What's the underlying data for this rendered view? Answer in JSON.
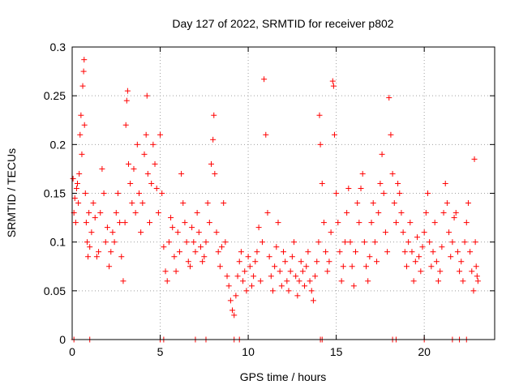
{
  "chart_data": {
    "type": "scatter",
    "title": "Day 127 of 2022, SRMTID for receiver p802",
    "xlabel": "GPS time / hours",
    "ylabel": "SRMTID / TECUs",
    "xlim": [
      0,
      24
    ],
    "ylim": [
      0,
      0.3
    ],
    "xticks": [
      0,
      5,
      10,
      15,
      20
    ],
    "yticks": [
      0,
      0.05,
      0.1,
      0.15,
      0.2,
      0.25,
      0.3
    ],
    "xtick_labels": [
      "0",
      "5",
      "10",
      "15",
      "20"
    ],
    "ytick_labels": [
      "0",
      "0.05",
      "0.1",
      "0.15",
      "0.2",
      "0.25",
      "0.3"
    ],
    "grid": true,
    "marker": "+",
    "color": "#ff0000",
    "series": [
      {
        "name": "SRMTID",
        "points": [
          [
            0.05,
            0.165
          ],
          [
            0.1,
            0.13
          ],
          [
            0.15,
            0.145
          ],
          [
            0.2,
            0.12
          ],
          [
            0.25,
            0.155
          ],
          [
            0.3,
            0.16
          ],
          [
            0.35,
            0.14
          ],
          [
            0.4,
            0.17
          ],
          [
            0.45,
            0.21
          ],
          [
            0.5,
            0.23
          ],
          [
            0.55,
            0.19
          ],
          [
            0.6,
            0.26
          ],
          [
            0.65,
            0.275
          ],
          [
            0.68,
            0.287
          ],
          [
            0.7,
            0.22
          ],
          [
            0.75,
            0.15
          ],
          [
            0.8,
            0.12
          ],
          [
            0.85,
            0.1
          ],
          [
            0.9,
            0.085
          ],
          [
            0.95,
            0.13
          ],
          [
            1.0,
            0.095
          ],
          [
            1.1,
            0.11
          ],
          [
            1.2,
            0.14
          ],
          [
            1.3,
            0.125
          ],
          [
            1.4,
            0.085
          ],
          [
            1.5,
            0.09
          ],
          [
            1.6,
            0.13
          ],
          [
            1.7,
            0.175
          ],
          [
            1.8,
            0.15
          ],
          [
            1.9,
            0.1
          ],
          [
            2.0,
            0.115
          ],
          [
            2.1,
            0.075
          ],
          [
            2.2,
            0.09
          ],
          [
            2.3,
            0.11
          ],
          [
            2.4,
            0.1
          ],
          [
            2.5,
            0.13
          ],
          [
            2.6,
            0.15
          ],
          [
            2.7,
            0.12
          ],
          [
            2.8,
            0.085
          ],
          [
            2.9,
            0.06
          ],
          [
            3.0,
            0.12
          ],
          [
            3.05,
            0.22
          ],
          [
            3.1,
            0.245
          ],
          [
            3.15,
            0.255
          ],
          [
            3.2,
            0.18
          ],
          [
            3.3,
            0.16
          ],
          [
            3.4,
            0.14
          ],
          [
            3.5,
            0.175
          ],
          [
            3.6,
            0.13
          ],
          [
            3.7,
            0.2
          ],
          [
            3.8,
            0.15
          ],
          [
            3.9,
            0.11
          ],
          [
            4.0,
            0.14
          ],
          [
            4.1,
            0.19
          ],
          [
            4.2,
            0.21
          ],
          [
            4.25,
            0.25
          ],
          [
            4.3,
            0.17
          ],
          [
            4.4,
            0.12
          ],
          [
            4.5,
            0.16
          ],
          [
            4.6,
            0.2
          ],
          [
            4.7,
            0.18
          ],
          [
            4.8,
            0.155
          ],
          [
            4.9,
            0.13
          ],
          [
            5.0,
            0.21
          ],
          [
            5.1,
            0.15
          ],
          [
            5.2,
            0.095
          ],
          [
            5.3,
            0.07
          ],
          [
            5.4,
            0.06
          ],
          [
            5.5,
            0.1
          ],
          [
            5.6,
            0.125
          ],
          [
            5.7,
            0.115
          ],
          [
            5.8,
            0.085
          ],
          [
            5.9,
            0.07
          ],
          [
            6.0,
            0.11
          ],
          [
            6.1,
            0.09
          ],
          [
            6.2,
            0.17
          ],
          [
            6.3,
            0.14
          ],
          [
            6.4,
            0.12
          ],
          [
            6.5,
            0.1
          ],
          [
            6.6,
            0.08
          ],
          [
            6.7,
            0.075
          ],
          [
            6.8,
            0.115
          ],
          [
            6.9,
            0.1
          ],
          [
            7.0,
            0.09
          ],
          [
            7.1,
            0.13
          ],
          [
            7.2,
            0.11
          ],
          [
            7.3,
            0.095
          ],
          [
            7.4,
            0.08
          ],
          [
            7.5,
            0.085
          ],
          [
            7.6,
            0.1
          ],
          [
            7.7,
            0.14
          ],
          [
            7.8,
            0.12
          ],
          [
            7.9,
            0.18
          ],
          [
            8.0,
            0.205
          ],
          [
            8.05,
            0.23
          ],
          [
            8.1,
            0.17
          ],
          [
            8.2,
            0.11
          ],
          [
            8.3,
            0.09
          ],
          [
            8.4,
            0.075
          ],
          [
            8.5,
            0.095
          ],
          [
            8.6,
            0.14
          ],
          [
            8.7,
            0.1
          ],
          [
            8.8,
            0.065
          ],
          [
            8.9,
            0.055
          ],
          [
            9.0,
            0.04
          ],
          [
            9.1,
            0.03
          ],
          [
            9.2,
            0.025
          ],
          [
            9.3,
            0.045
          ],
          [
            9.4,
            0.065
          ],
          [
            9.5,
            0.08
          ],
          [
            9.6,
            0.09
          ],
          [
            9.7,
            0.06
          ],
          [
            9.8,
            0.07
          ],
          [
            9.9,
            0.05
          ],
          [
            10.0,
            0.085
          ],
          [
            10.1,
            0.075
          ],
          [
            10.2,
            0.055
          ],
          [
            10.3,
            0.065
          ],
          [
            10.4,
            0.08
          ],
          [
            10.5,
            0.09
          ],
          [
            10.6,
            0.115
          ],
          [
            10.7,
            0.06
          ],
          [
            10.8,
            0.1
          ],
          [
            10.9,
            0.267
          ],
          [
            11.0,
            0.21
          ],
          [
            11.1,
            0.13
          ],
          [
            11.2,
            0.085
          ],
          [
            11.3,
            0.065
          ],
          [
            11.4,
            0.05
          ],
          [
            11.5,
            0.075
          ],
          [
            11.6,
            0.095
          ],
          [
            11.7,
            0.12
          ],
          [
            11.8,
            0.07
          ],
          [
            11.9,
            0.055
          ],
          [
            12.0,
            0.09
          ],
          [
            12.1,
            0.08
          ],
          [
            12.2,
            0.06
          ],
          [
            12.3,
            0.05
          ],
          [
            12.4,
            0.07
          ],
          [
            12.5,
            0.085
          ],
          [
            12.6,
            0.1
          ],
          [
            12.7,
            0.065
          ],
          [
            12.8,
            0.045
          ],
          [
            12.9,
            0.06
          ],
          [
            13.0,
            0.08
          ],
          [
            13.1,
            0.07
          ],
          [
            13.2,
            0.055
          ],
          [
            13.3,
            0.075
          ],
          [
            13.4,
            0.09
          ],
          [
            13.5,
            0.06
          ],
          [
            13.6,
            0.05
          ],
          [
            13.7,
            0.04
          ],
          [
            13.8,
            0.065
          ],
          [
            13.9,
            0.08
          ],
          [
            14.0,
            0.1
          ],
          [
            14.05,
            0.23
          ],
          [
            14.1,
            0.2
          ],
          [
            14.2,
            0.16
          ],
          [
            14.3,
            0.12
          ],
          [
            14.4,
            0.09
          ],
          [
            14.5,
            0.07
          ],
          [
            14.6,
            0.08
          ],
          [
            14.7,
            0.11
          ],
          [
            14.8,
            0.265
          ],
          [
            14.85,
            0.26
          ],
          [
            14.9,
            0.21
          ],
          [
            15.0,
            0.15
          ],
          [
            15.1,
            0.12
          ],
          [
            15.2,
            0.09
          ],
          [
            15.3,
            0.06
          ],
          [
            15.4,
            0.075
          ],
          [
            15.5,
            0.1
          ],
          [
            15.6,
            0.13
          ],
          [
            15.7,
            0.155
          ],
          [
            15.8,
            0.1
          ],
          [
            15.9,
            0.075
          ],
          [
            16.0,
            0.055
          ],
          [
            16.1,
            0.09
          ],
          [
            16.2,
            0.14
          ],
          [
            16.3,
            0.12
          ],
          [
            16.4,
            0.155
          ],
          [
            16.5,
            0.17
          ],
          [
            16.6,
            0.1
          ],
          [
            16.7,
            0.075
          ],
          [
            16.8,
            0.06
          ],
          [
            16.9,
            0.085
          ],
          [
            17.0,
            0.12
          ],
          [
            17.1,
            0.14
          ],
          [
            17.2,
            0.1
          ],
          [
            17.3,
            0.08
          ],
          [
            17.4,
            0.13
          ],
          [
            17.5,
            0.16
          ],
          [
            17.6,
            0.19
          ],
          [
            17.7,
            0.15
          ],
          [
            17.8,
            0.11
          ],
          [
            17.9,
            0.09
          ],
          [
            18.0,
            0.248
          ],
          [
            18.1,
            0.21
          ],
          [
            18.2,
            0.17
          ],
          [
            18.3,
            0.14
          ],
          [
            18.4,
            0.12
          ],
          [
            18.5,
            0.16
          ],
          [
            18.6,
            0.15
          ],
          [
            18.7,
            0.13
          ],
          [
            18.8,
            0.11
          ],
          [
            18.9,
            0.09
          ],
          [
            19.0,
            0.075
          ],
          [
            19.1,
            0.1
          ],
          [
            19.2,
            0.12
          ],
          [
            19.3,
            0.09
          ],
          [
            19.4,
            0.06
          ],
          [
            19.5,
            0.08
          ],
          [
            19.6,
            0.105
          ],
          [
            19.7,
            0.085
          ],
          [
            19.8,
            0.07
          ],
          [
            19.9,
            0.095
          ],
          [
            20.0,
            0.11
          ],
          [
            20.1,
            0.13
          ],
          [
            20.2,
            0.15
          ],
          [
            20.3,
            0.1
          ],
          [
            20.4,
            0.075
          ],
          [
            20.5,
            0.09
          ],
          [
            20.6,
            0.12
          ],
          [
            20.7,
            0.08
          ],
          [
            20.8,
            0.06
          ],
          [
            20.9,
            0.07
          ],
          [
            21.0,
            0.095
          ],
          [
            21.1,
            0.13
          ],
          [
            21.2,
            0.16
          ],
          [
            21.3,
            0.14
          ],
          [
            21.4,
            0.11
          ],
          [
            21.5,
            0.085
          ],
          [
            21.6,
            0.1
          ],
          [
            21.7,
            0.125
          ],
          [
            21.8,
            0.13
          ],
          [
            21.9,
            0.09
          ],
          [
            22.0,
            0.07
          ],
          [
            22.1,
            0.08
          ],
          [
            22.2,
            0.06
          ],
          [
            22.3,
            0.1
          ],
          [
            22.4,
            0.12
          ],
          [
            22.5,
            0.14
          ],
          [
            22.6,
            0.09
          ],
          [
            22.7,
            0.07
          ],
          [
            22.8,
            0.05
          ],
          [
            22.85,
            0.185
          ],
          [
            22.9,
            0.1
          ],
          [
            22.95,
            0.075
          ],
          [
            23.0,
            0.065
          ],
          [
            23.05,
            0.06
          ]
        ]
      }
    ],
    "zero_markers_x": [
      0.1,
      1.0,
      5.0,
      5.2,
      7.0,
      7.6,
      9.2,
      9.5,
      14.1,
      14.2,
      18.2,
      18.4,
      20.0,
      21.6,
      22.0,
      22.4
    ]
  }
}
